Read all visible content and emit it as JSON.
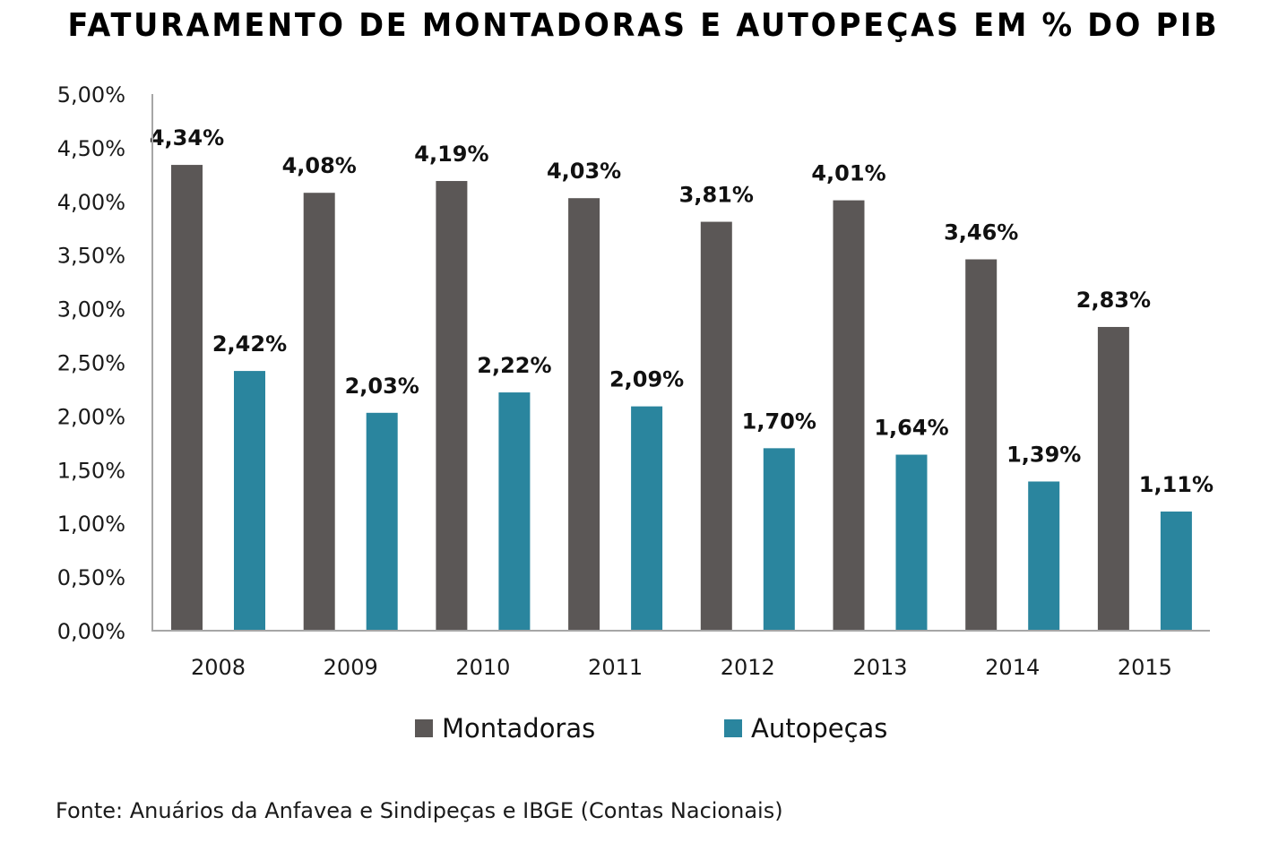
{
  "chart_data": {
    "type": "bar",
    "title": "FATURAMENTO DE MONTADORAS E AUTOPEÇAS EM % DO PIB",
    "xlabel": "",
    "ylabel": "",
    "categories": [
      "2008",
      "2009",
      "2010",
      "2011",
      "2012",
      "2013",
      "2014",
      "2015"
    ],
    "series": [
      {
        "name": "Montadoras",
        "color": "#5b5756",
        "values": [
          4.34,
          4.08,
          4.19,
          4.03,
          3.81,
          4.01,
          3.46,
          2.83
        ],
        "labels": [
          "4,34%",
          "4,08%",
          "4,19%",
          "4,03%",
          "3,81%",
          "4,01%",
          "3,46%",
          "2,83%"
        ]
      },
      {
        "name": "Autopeças",
        "color": "#2a859e",
        "values": [
          2.42,
          2.03,
          2.22,
          2.09,
          1.7,
          1.64,
          1.39,
          1.11
        ],
        "labels": [
          "2,42%",
          "2,03%",
          "2,22%",
          "2,09%",
          "1,70%",
          "1,64%",
          "1,39%",
          "1,11%"
        ]
      }
    ],
    "ylim": [
      0,
      5
    ],
    "yticks": [
      0,
      0.5,
      1,
      1.5,
      2,
      2.5,
      3,
      3.5,
      4,
      4.5,
      5
    ],
    "ytick_labels": [
      "0,00%",
      "0,50%",
      "1,00%",
      "1,50%",
      "2,00%",
      "2,50%",
      "3,00%",
      "3,50%",
      "4,00%",
      "4,50%",
      "5,00%"
    ],
    "grid": false,
    "legend_position": "bottom-center",
    "source": "Fonte: Anuários da Anfavea e Sindipeças e IBGE (Contas Nacionais)"
  }
}
